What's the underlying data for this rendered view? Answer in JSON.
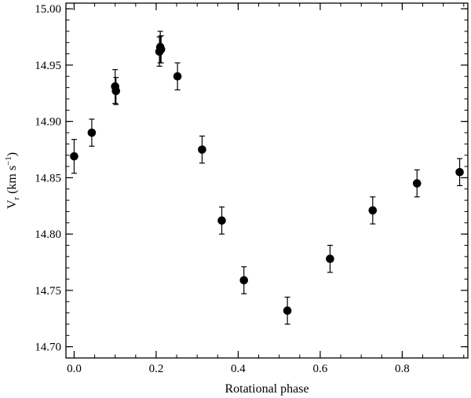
{
  "chart_data": {
    "type": "scatter",
    "xlabel": "Rotational phase",
    "ylabel": {
      "main": "V",
      "sub": "r",
      "unit_open": " (km s",
      "unit_sup": "−1",
      "unit_close": ")"
    },
    "xlim": [
      -0.02,
      0.96
    ],
    "ylim": [
      14.69,
      15.005
    ],
    "x_ticks": [
      {
        "value": 0.0,
        "label": "0.0"
      },
      {
        "value": 0.2,
        "label": "0.2"
      },
      {
        "value": 0.4,
        "label": "0.4"
      },
      {
        "value": 0.6,
        "label": "0.6"
      },
      {
        "value": 0.8,
        "label": "0.8"
      }
    ],
    "y_ticks": [
      {
        "value": 14.7,
        "label": "14.70"
      },
      {
        "value": 14.75,
        "label": "14.75"
      },
      {
        "value": 14.8,
        "label": "14.80"
      },
      {
        "value": 14.85,
        "label": "14.85"
      },
      {
        "value": 14.9,
        "label": "14.90"
      },
      {
        "value": 14.95,
        "label": "14.95"
      },
      {
        "value": 15.0,
        "label": "15.00"
      }
    ],
    "x_minor_step": 0.05,
    "y_minor_step": 0.01,
    "grid": false,
    "marker_color": "#000000",
    "points": [
      {
        "x": 0.0,
        "y": 14.869,
        "err": 0.015
      },
      {
        "x": 0.043,
        "y": 14.89,
        "err": 0.012
      },
      {
        "x": 0.1,
        "y": 14.931,
        "err": 0.015
      },
      {
        "x": 0.102,
        "y": 14.927,
        "err": 0.012
      },
      {
        "x": 0.208,
        "y": 14.962,
        "err": 0.013
      },
      {
        "x": 0.21,
        "y": 14.966,
        "err": 0.014
      },
      {
        "x": 0.212,
        "y": 14.964,
        "err": 0.012
      },
      {
        "x": 0.252,
        "y": 14.94,
        "err": 0.012
      },
      {
        "x": 0.312,
        "y": 14.875,
        "err": 0.012
      },
      {
        "x": 0.36,
        "y": 14.812,
        "err": 0.012
      },
      {
        "x": 0.414,
        "y": 14.759,
        "err": 0.012
      },
      {
        "x": 0.52,
        "y": 14.732,
        "err": 0.012
      },
      {
        "x": 0.624,
        "y": 14.778,
        "err": 0.012
      },
      {
        "x": 0.728,
        "y": 14.821,
        "err": 0.012
      },
      {
        "x": 0.836,
        "y": 14.845,
        "err": 0.012
      },
      {
        "x": 0.94,
        "y": 14.855,
        "err": 0.012
      }
    ]
  }
}
